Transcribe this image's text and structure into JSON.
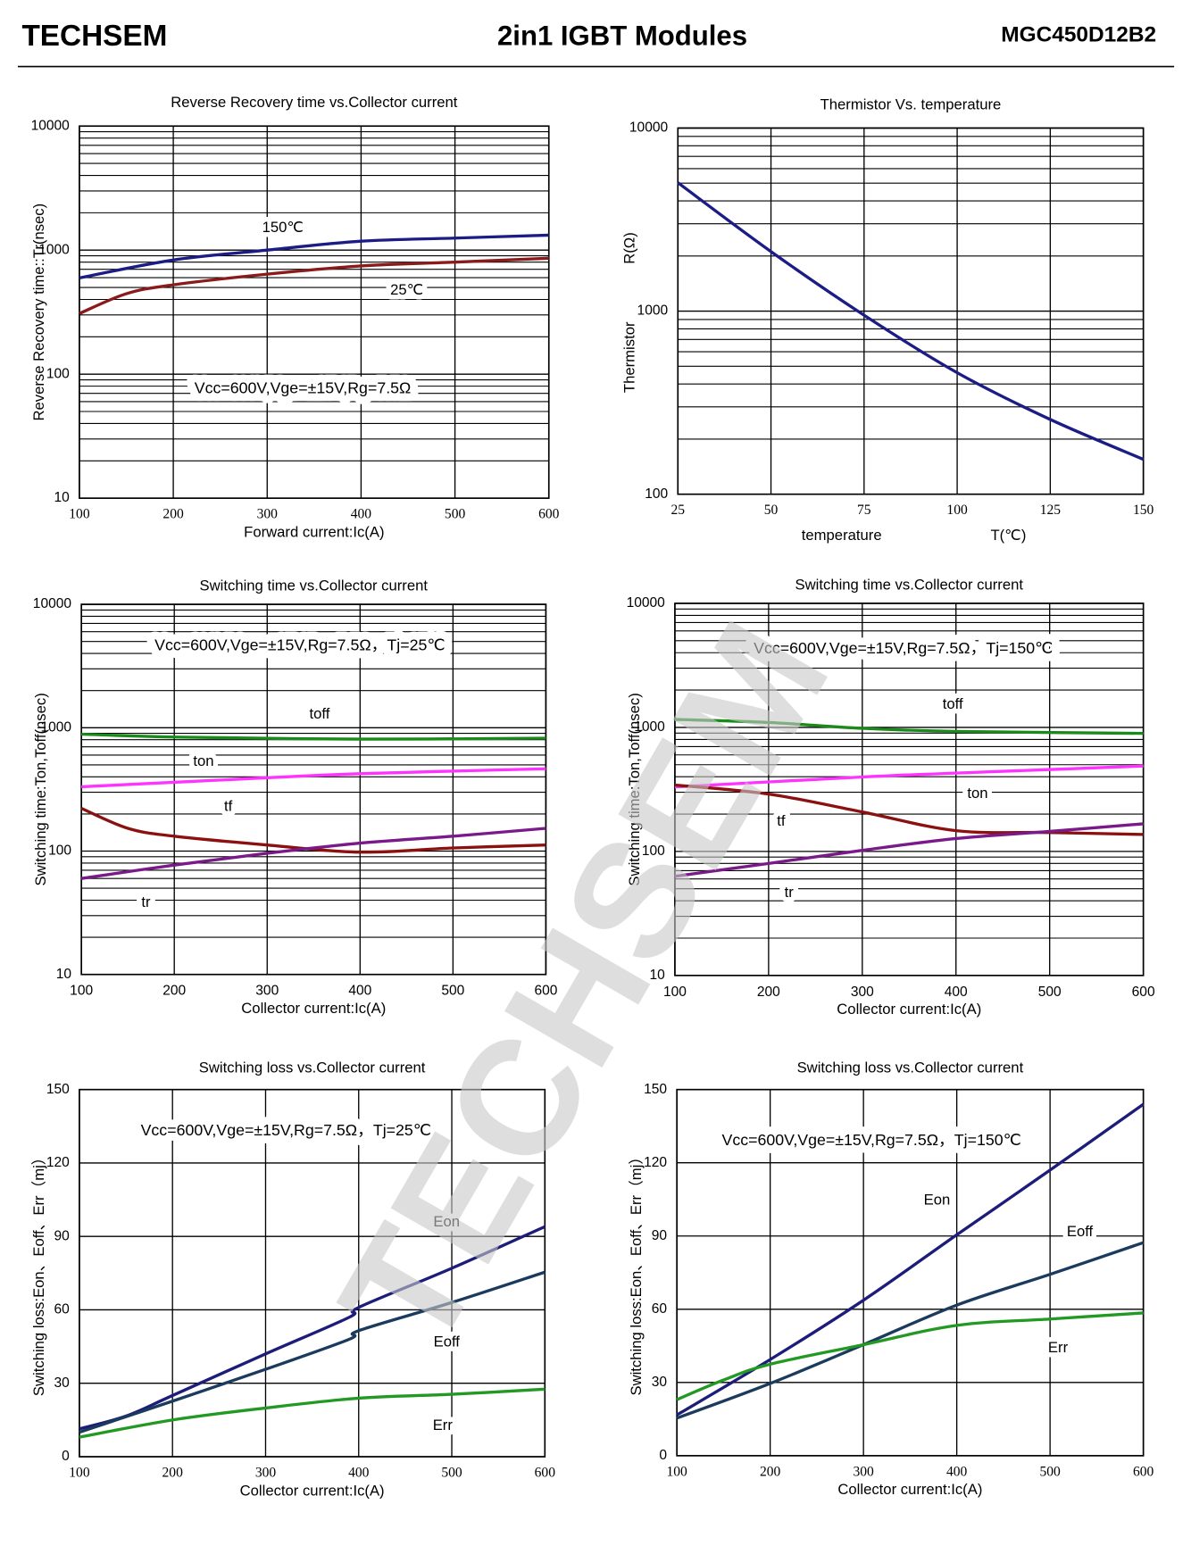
{
  "header": {
    "brand": "TECHSEM",
    "title": "2in1  IGBT  Modules",
    "part": "MGC450D12B2"
  },
  "watermark": "TECHSEM",
  "chart_data": [
    {
      "type": "line",
      "title": "Reverse Recovery time vs.Collector current",
      "x_label": "Forward current:Ic(A)",
      "y_label": "Reverse Recovery time::Tr(nsec)",
      "log_y": true,
      "grid": true,
      "xlim": [
        100,
        600
      ],
      "xticks": [
        100,
        200,
        300,
        400,
        500,
        600
      ],
      "ylim": [
        10,
        10000
      ],
      "yticks": [
        10,
        100,
        1000,
        10000
      ],
      "annotations": [
        "Vcc=600V,Vge=±15V,Rg=7.5Ω"
      ],
      "series": [
        {
          "name": "150℃",
          "color": "#1c1c86",
          "x": [
            100,
            200,
            300,
            400,
            500,
            600
          ],
          "values": [
            597,
            832,
            1000,
            1180,
            1250,
            1320
          ]
        },
        {
          "name": "25℃",
          "color": "#8b1a1a",
          "x": [
            100,
            150,
            200,
            300,
            400,
            500,
            600
          ],
          "values": [
            308,
            445,
            525,
            640,
            745,
            800,
            860
          ]
        }
      ]
    },
    {
      "type": "line",
      "title": "Thermistor Vs. temperature",
      "x_label": "temperature",
      "x_unit": "T(℃)",
      "y_label": "Thermistor",
      "y_unit": "R(Ω)",
      "log_y": true,
      "grid": true,
      "xlim": [
        25,
        150
      ],
      "xticks": [
        25,
        50,
        75,
        100,
        125,
        150
      ],
      "ylim": [
        100,
        10000
      ],
      "yticks": [
        100,
        1000,
        10000
      ],
      "annotations": [],
      "series": [
        {
          "color": "#1c1c86",
          "x": [
            25,
            50,
            75,
            100,
            125,
            150
          ],
          "values": [
            5030,
            2115,
            950,
            461,
            256,
            155
          ]
        }
      ]
    },
    {
      "type": "line",
      "title": "Switching time vs.Collector current",
      "x_label": "Collector current:Ic(A)",
      "y_label": "Switching time:Ton,Toff(nsec)",
      "log_y": true,
      "grid": true,
      "xlim": [
        100,
        600
      ],
      "xticks": [
        100,
        200,
        300,
        400,
        500,
        600
      ],
      "ylim": [
        10,
        10000
      ],
      "yticks": [
        10,
        100,
        1000,
        10000
      ],
      "annotations": [
        "Vcc=600V,Vge=±15V,Rg=7.5Ω，Tj=25℃"
      ],
      "series": [
        {
          "name": "toff",
          "color": "#1a8a1a",
          "x": [
            100,
            200,
            400,
            600
          ],
          "values": [
            887,
            840,
            808,
            823
          ]
        },
        {
          "name": "ton",
          "color": "#ff33ff",
          "x": [
            100,
            300,
            400,
            600
          ],
          "values": [
            332,
            393,
            424,
            465
          ]
        },
        {
          "name": "tf",
          "color": "#8b1010",
          "x": [
            100,
            150,
            200,
            300,
            400,
            500,
            600
          ],
          "values": [
            222,
            153,
            132,
            112,
            98,
            106,
            112
          ]
        },
        {
          "name": "tr",
          "color": "#7a1a8a",
          "x": [
            100,
            200,
            300,
            400,
            500,
            600
          ],
          "values": [
            60,
            77,
            96,
            116,
            132,
            153
          ]
        }
      ]
    },
    {
      "type": "line",
      "title": "Switching time vs.Collector current",
      "x_label": "Collector current:Ic(A)",
      "y_label": "Switching time:Ton,Toff(nsec)",
      "log_y": true,
      "grid": true,
      "xlim": [
        100,
        600
      ],
      "xticks": [
        100,
        200,
        300,
        400,
        500,
        600
      ],
      "ylim": [
        10,
        10000
      ],
      "yticks": [
        10,
        100,
        1000,
        10000
      ],
      "annotations": [
        "Vcc=600V,Vge=±15V,Rg=7.5Ω，Tj=150℃"
      ],
      "series": [
        {
          "name": "toff",
          "color": "#1a8a1a",
          "x": [
            100,
            200,
            300,
            400,
            600
          ],
          "values": [
            1160,
            1096,
            982,
            929,
            895
          ]
        },
        {
          "name": "ton",
          "color": "#ff33ff",
          "x": [
            100,
            300,
            400,
            600
          ],
          "values": [
            331,
            398,
            428,
            488
          ]
        },
        {
          "name": "tf",
          "color": "#8b1010",
          "x": [
            100,
            200,
            300,
            400,
            500,
            600
          ],
          "values": [
            343,
            290,
            208,
            147,
            142,
            137
          ]
        },
        {
          "name": "tr",
          "color": "#7a1a8a",
          "x": [
            100,
            200,
            300,
            400,
            500,
            600
          ],
          "values": [
            63,
            80,
            102,
            127,
            145,
            167
          ]
        }
      ]
    },
    {
      "type": "line",
      "title": "Switching loss vs.Collector current",
      "x_label": "Collector current:Ic(A)",
      "y_label": "Switching loss:Eon、Eoff、Err（mj）",
      "log_y": false,
      "grid": true,
      "xlim": [
        100,
        600
      ],
      "xticks": [
        100,
        200,
        300,
        400,
        500,
        600
      ],
      "ylim": [
        0,
        150
      ],
      "yticks": [
        0,
        30,
        60,
        90,
        120,
        150
      ],
      "annotations": [
        "Vcc=600V,Vge=±15V,Rg=7.5Ω，Tj=25℃"
      ],
      "series": [
        {
          "name": "Eon",
          "color": "#1c1c7a",
          "x": [
            100,
            150,
            200,
            300,
            390,
            400,
            500,
            600
          ],
          "values": [
            11.4,
            16.6,
            25,
            42,
            57,
            61,
            77,
            94
          ]
        },
        {
          "name": "Eoff",
          "color": "#1a3a5e",
          "x": [
            100,
            200,
            300,
            390,
            400,
            500,
            600
          ],
          "values": [
            10,
            22.7,
            35.7,
            48,
            51.5,
            63,
            75.4
          ]
        },
        {
          "name": "Err",
          "color": "#229922",
          "x": [
            100,
            200,
            300,
            400,
            500,
            600
          ],
          "values": [
            8,
            15,
            19.9,
            23.9,
            25.5,
            27.6
          ]
        }
      ]
    },
    {
      "type": "line",
      "title": "Switching loss vs.Collector current",
      "x_label": "Collector current:Ic(A)",
      "y_label": "Switching loss:Eon、Eoff、Err（mj）",
      "log_y": false,
      "grid": true,
      "xlim": [
        100,
        600
      ],
      "xticks": [
        100,
        200,
        300,
        400,
        500,
        600
      ],
      "ylim": [
        0,
        150
      ],
      "yticks": [
        0,
        30,
        60,
        90,
        120,
        150
      ],
      "annotations": [
        "Vcc=600V,Vge=±15V,Rg=7.5Ω，Tj=150℃"
      ],
      "series": [
        {
          "name": "Eon",
          "color": "#1c1c7a",
          "x": [
            100,
            200,
            300,
            400,
            500,
            600
          ],
          "values": [
            16.7,
            39.4,
            63.7,
            90.5,
            117,
            144
          ]
        },
        {
          "name": "Eoff",
          "color": "#1a3a5e",
          "x": [
            100,
            200,
            300,
            400,
            500,
            600
          ],
          "values": [
            15.4,
            29.6,
            45.5,
            61.7,
            74.3,
            87.3
          ]
        },
        {
          "name": "Err",
          "color": "#229922",
          "x": [
            100,
            150,
            200,
            300,
            400,
            500,
            600
          ],
          "values": [
            23,
            31,
            37.5,
            45.5,
            53.4,
            56,
            58.5
          ]
        }
      ]
    }
  ]
}
